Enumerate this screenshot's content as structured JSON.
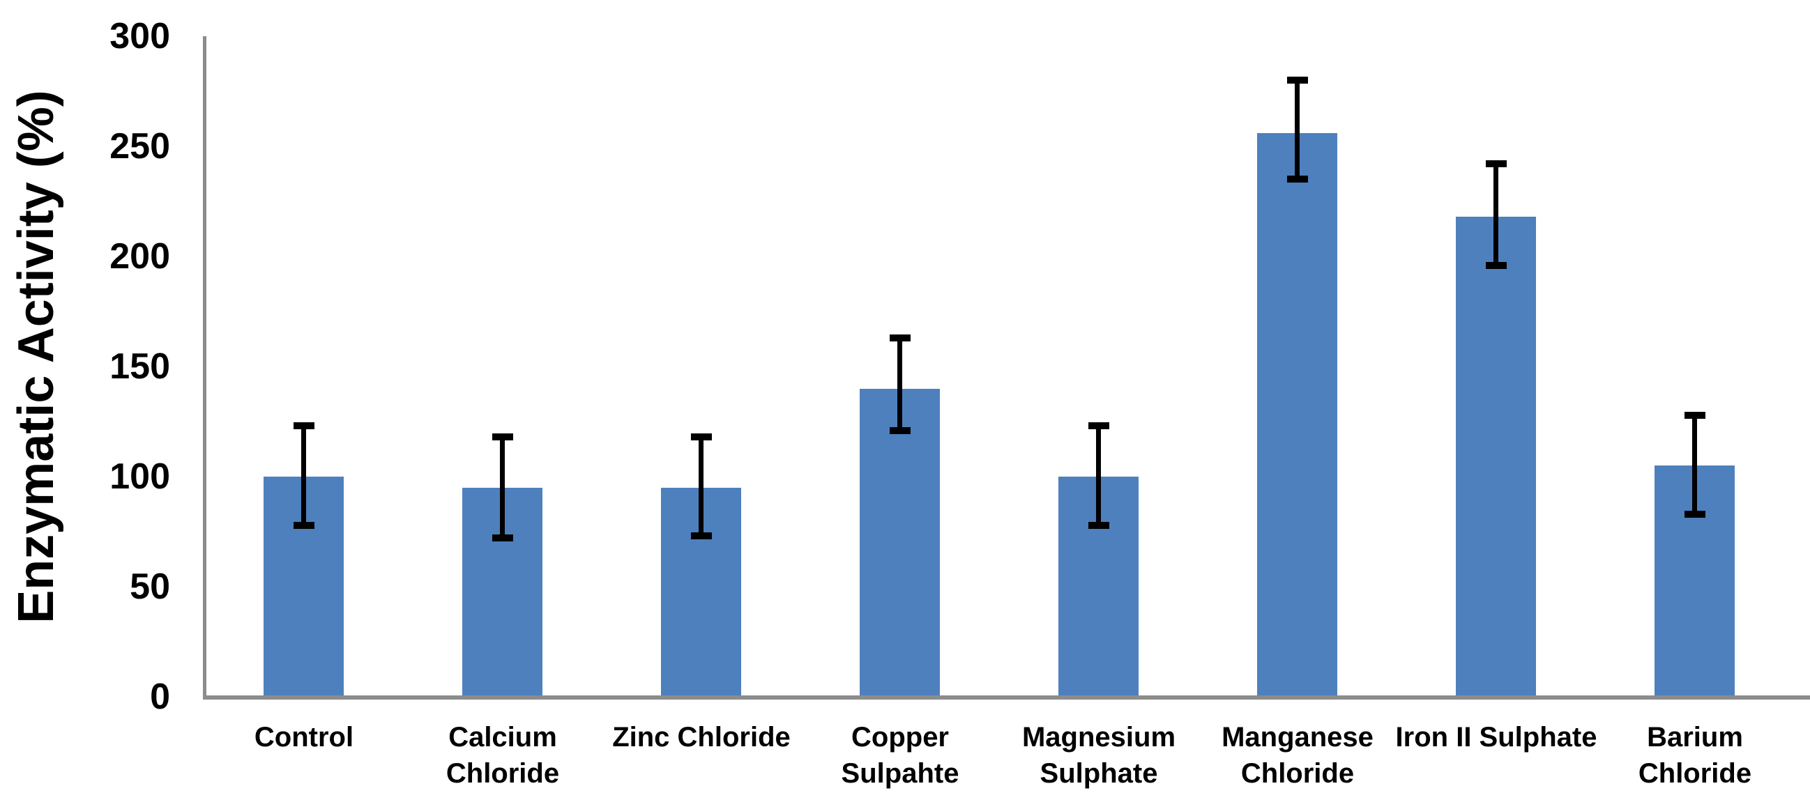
{
  "figure": {
    "background": "#FFFFFF"
  },
  "chart_data": {
    "type": "bar",
    "title": "",
    "xlabel": "",
    "ylabel": "Enzymatic Activity (%)",
    "ylim": [
      0,
      300
    ],
    "yticks": [
      0,
      50,
      100,
      150,
      200,
      250,
      300
    ],
    "grid": false,
    "legend": null,
    "bar_color": "#4E80BE",
    "error_bar_color": "#000000",
    "axis_color": "#8C8C8C",
    "text_color": "#000000",
    "categories": [
      "Control",
      "Calcium Chloride",
      "Zinc Chloride",
      "Copper Sulpahte",
      "Magnesium Sulphate",
      "Manganese Chloride",
      "Iron II Sulphate",
      "Barium Chloride"
    ],
    "label_lines": [
      [
        "Control"
      ],
      [
        "Calcium",
        "Chloride"
      ],
      [
        "Zinc Chloride"
      ],
      [
        "Copper",
        "Sulpahte"
      ],
      [
        "Magnesium",
        "Sulphate"
      ],
      [
        "Manganese",
        "Chloride"
      ],
      [
        "Iron II Sulphate"
      ],
      [
        "Barium",
        "Chloride"
      ]
    ],
    "values": [
      100,
      95,
      95,
      140,
      100,
      256,
      218,
      105
    ],
    "error_ranges": [
      [
        78,
        123
      ],
      [
        72,
        118
      ],
      [
        73,
        118
      ],
      [
        121,
        163
      ],
      [
        78,
        123
      ],
      [
        235,
        280
      ],
      [
        196,
        242
      ],
      [
        83,
        128
      ]
    ]
  }
}
